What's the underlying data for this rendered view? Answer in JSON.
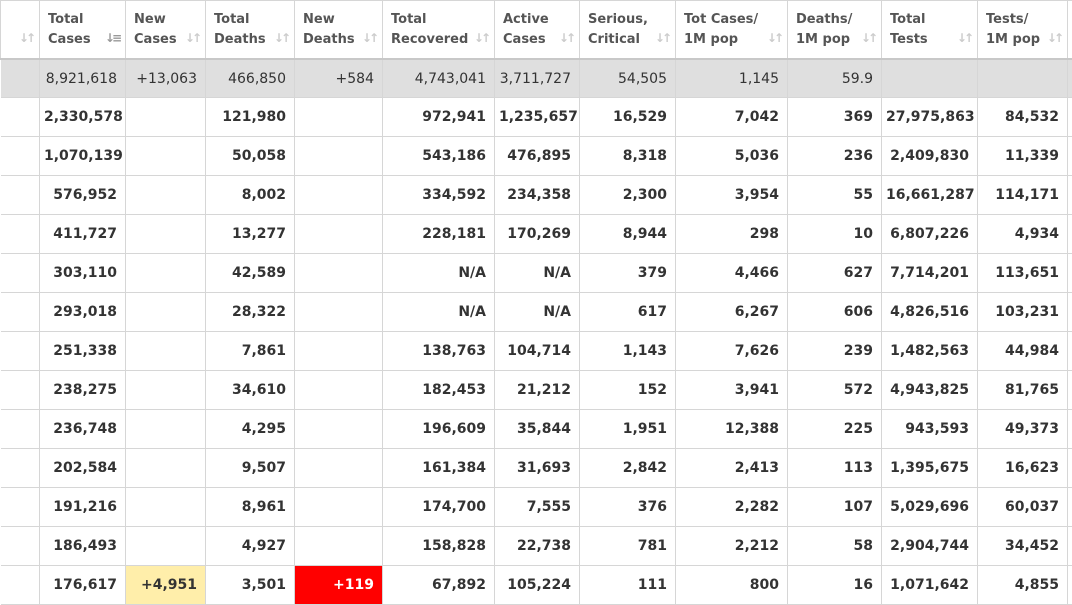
{
  "columns": [
    {
      "label": [
        "",
        ""
      ],
      "sort_icon": "sort-icon"
    },
    {
      "label": [
        "Total",
        "Cases"
      ],
      "sort_icon": "sort-desc-icon"
    },
    {
      "label": [
        "New",
        "Cases"
      ],
      "sort_icon": "sort-icon"
    },
    {
      "label": [
        "Total",
        "Deaths"
      ],
      "sort_icon": "sort-icon"
    },
    {
      "label": [
        "New",
        "Deaths"
      ],
      "sort_icon": "sort-icon"
    },
    {
      "label": [
        "Total",
        "Recovered"
      ],
      "sort_icon": "sort-icon"
    },
    {
      "label": [
        "Active",
        "Cases"
      ],
      "sort_icon": "sort-icon"
    },
    {
      "label": [
        "Serious,",
        "Critical"
      ],
      "sort_icon": "sort-icon"
    },
    {
      "label": [
        "Tot Cases/",
        "1M pop"
      ],
      "sort_icon": "sort-icon"
    },
    {
      "label": [
        "Deaths/",
        "1M pop"
      ],
      "sort_icon": "sort-icon"
    },
    {
      "label": [
        "Total",
        "Tests"
      ],
      "sort_icon": "sort-icon"
    },
    {
      "label": [
        "Tests/",
        "1M pop"
      ],
      "sort_icon": "sort-icon"
    }
  ],
  "world_row": [
    "",
    "8,921,618",
    "+13,063",
    "466,850",
    "+584",
    "4,743,041",
    "3,711,727",
    "54,505",
    "1,145",
    "59.9",
    "",
    ""
  ],
  "rows": [
    [
      "",
      "2,330,578",
      "",
      "121,980",
      "",
      "972,941",
      "1,235,657",
      "16,529",
      "7,042",
      "369",
      "27,975,863",
      "84,532"
    ],
    [
      "",
      "1,070,139",
      "",
      "50,058",
      "",
      "543,186",
      "476,895",
      "8,318",
      "5,036",
      "236",
      "2,409,830",
      "11,339"
    ],
    [
      "",
      "576,952",
      "",
      "8,002",
      "",
      "334,592",
      "234,358",
      "2,300",
      "3,954",
      "55",
      "16,661,287",
      "114,171"
    ],
    [
      "",
      "411,727",
      "",
      "13,277",
      "",
      "228,181",
      "170,269",
      "8,944",
      "298",
      "10",
      "6,807,226",
      "4,934"
    ],
    [
      "",
      "303,110",
      "",
      "42,589",
      "",
      "N/A",
      "N/A",
      "379",
      "4,466",
      "627",
      "7,714,201",
      "113,651"
    ],
    [
      "",
      "293,018",
      "",
      "28,322",
      "",
      "N/A",
      "N/A",
      "617",
      "6,267",
      "606",
      "4,826,516",
      "103,231"
    ],
    [
      "",
      "251,338",
      "",
      "7,861",
      "",
      "138,763",
      "104,714",
      "1,143",
      "7,626",
      "239",
      "1,482,563",
      "44,984"
    ],
    [
      "",
      "238,275",
      "",
      "34,610",
      "",
      "182,453",
      "21,212",
      "152",
      "3,941",
      "572",
      "4,943,825",
      "81,765"
    ],
    [
      "",
      "236,748",
      "",
      "4,295",
      "",
      "196,609",
      "35,844",
      "1,951",
      "12,388",
      "225",
      "943,593",
      "49,373"
    ],
    [
      "",
      "202,584",
      "",
      "9,507",
      "",
      "161,384",
      "31,693",
      "2,842",
      "2,413",
      "113",
      "1,395,675",
      "16,623"
    ],
    [
      "",
      "191,216",
      "",
      "8,961",
      "",
      "174,700",
      "7,555",
      "376",
      "2,282",
      "107",
      "5,029,696",
      "60,037"
    ],
    [
      "",
      "186,493",
      "",
      "4,927",
      "",
      "158,828",
      "22,738",
      "781",
      "2,212",
      "58",
      "2,904,744",
      "34,452"
    ],
    [
      "",
      "176,617",
      "+4,951",
      "3,501",
      "+119",
      "67,892",
      "105,224",
      "111",
      "800",
      "16",
      "1,071,642",
      "4,855"
    ]
  ],
  "colors": {
    "new_cases_highlight": "#ffeeaa",
    "new_deaths_highlight": "#ff0000",
    "world_row_bg": "#dfdfdf"
  }
}
